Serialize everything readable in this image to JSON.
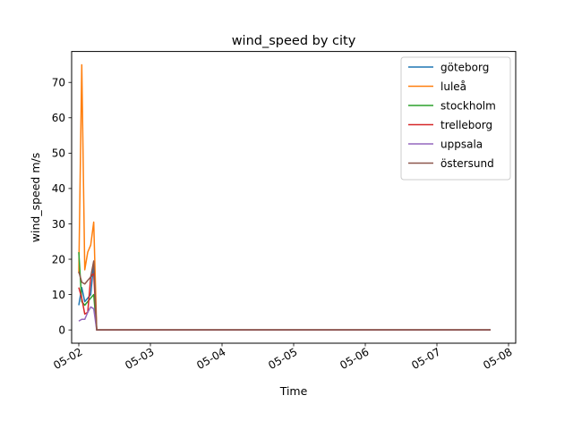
{
  "chart_data": {
    "type": "line",
    "title": "wind_speed by city",
    "xlabel": "Time",
    "ylabel": "wind_speed m/s",
    "xlim": [
      "2024-05-01T21:36",
      "2024-05-08T02:24"
    ],
    "ylim": [
      -3.75,
      78.75
    ],
    "x_ticks": [
      {
        "x": "2024-05-02T00:00",
        "label": "05-02"
      },
      {
        "x": "2024-05-03T00:00",
        "label": "05-03"
      },
      {
        "x": "2024-05-04T00:00",
        "label": "05-04"
      },
      {
        "x": "2024-05-05T00:00",
        "label": "05-05"
      },
      {
        "x": "2024-05-06T00:00",
        "label": "05-06"
      },
      {
        "x": "2024-05-07T00:00",
        "label": "05-07"
      },
      {
        "x": "2024-05-08T00:00",
        "label": "05-08"
      }
    ],
    "y_ticks": [
      0,
      10,
      20,
      30,
      40,
      50,
      60,
      70
    ],
    "grid": false,
    "legend": "top-right",
    "series": [
      {
        "name": "göteborg",
        "color": "#1f77b4",
        "points": [
          [
            "2024-05-02T00:00",
            7
          ],
          [
            "2024-05-02T01:00",
            12
          ],
          [
            "2024-05-02T02:00",
            8
          ],
          [
            "2024-05-02T03:00",
            9
          ],
          [
            "2024-05-02T04:00",
            10
          ],
          [
            "2024-05-02T05:00",
            19
          ],
          [
            "2024-05-02T06:00",
            0
          ],
          [
            "2024-05-07T18:00",
            0
          ]
        ]
      },
      {
        "name": "luleå",
        "color": "#ff7f0e",
        "points": [
          [
            "2024-05-02T00:00",
            16
          ],
          [
            "2024-05-02T01:00",
            75
          ],
          [
            "2024-05-02T02:00",
            17
          ],
          [
            "2024-05-02T03:00",
            22
          ],
          [
            "2024-05-02T04:00",
            24
          ],
          [
            "2024-05-02T05:00",
            30.5
          ],
          [
            "2024-05-02T06:00",
            0
          ],
          [
            "2024-05-07T18:00",
            0
          ]
        ]
      },
      {
        "name": "stockholm",
        "color": "#2ca02c",
        "points": [
          [
            "2024-05-02T00:00",
            22
          ],
          [
            "2024-05-02T01:00",
            8
          ],
          [
            "2024-05-02T02:00",
            7
          ],
          [
            "2024-05-02T03:00",
            8
          ],
          [
            "2024-05-02T04:00",
            9
          ],
          [
            "2024-05-02T05:00",
            10
          ],
          [
            "2024-05-02T06:00",
            0
          ],
          [
            "2024-05-07T18:00",
            0
          ]
        ]
      },
      {
        "name": "trelleborg",
        "color": "#d62728",
        "points": [
          [
            "2024-05-02T00:00",
            12
          ],
          [
            "2024-05-02T01:00",
            9
          ],
          [
            "2024-05-02T02:00",
            4.5
          ],
          [
            "2024-05-02T03:00",
            5
          ],
          [
            "2024-05-02T04:00",
            15
          ],
          [
            "2024-05-02T05:00",
            16
          ],
          [
            "2024-05-02T06:00",
            0
          ],
          [
            "2024-05-07T18:00",
            0
          ]
        ]
      },
      {
        "name": "uppsala",
        "color": "#9467bd",
        "points": [
          [
            "2024-05-02T00:00",
            2.5
          ],
          [
            "2024-05-02T01:00",
            3
          ],
          [
            "2024-05-02T02:00",
            3
          ],
          [
            "2024-05-02T03:00",
            5
          ],
          [
            "2024-05-02T04:00",
            6.5
          ],
          [
            "2024-05-02T05:00",
            6
          ],
          [
            "2024-05-02T06:00",
            0
          ],
          [
            "2024-05-07T18:00",
            0
          ]
        ]
      },
      {
        "name": "östersund",
        "color": "#8c564b",
        "points": [
          [
            "2024-05-02T00:00",
            16.5
          ],
          [
            "2024-05-02T01:00",
            13.5
          ],
          [
            "2024-05-02T02:00",
            13
          ],
          [
            "2024-05-02T03:00",
            14
          ],
          [
            "2024-05-02T04:00",
            15
          ],
          [
            "2024-05-02T05:00",
            19.5
          ],
          [
            "2024-05-02T06:00",
            0
          ],
          [
            "2024-05-07T18:00",
            0
          ]
        ]
      }
    ]
  }
}
